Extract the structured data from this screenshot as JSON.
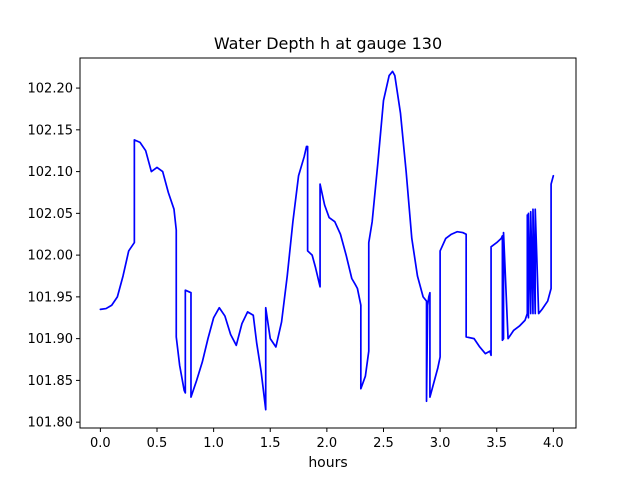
{
  "chart_data": {
    "type": "line",
    "title": "Water Depth h at gauge 130",
    "xlabel": "hours",
    "ylabel": "",
    "xlim": [
      -0.18,
      4.2
    ],
    "ylim": [
      101.793,
      102.236
    ],
    "xticks": [
      0.0,
      0.5,
      1.0,
      1.5,
      2.0,
      2.5,
      3.0,
      3.5,
      4.0
    ],
    "xtick_labels": [
      "0.0",
      "0.5",
      "1.0",
      "1.5",
      "2.0",
      "2.5",
      "3.0",
      "3.5",
      "4.0"
    ],
    "yticks": [
      101.8,
      101.85,
      101.9,
      101.95,
      102.0,
      102.05,
      102.1,
      102.15,
      102.2
    ],
    "ytick_labels": [
      "101.80",
      "101.85",
      "101.90",
      "101.95",
      "102.00",
      "102.05",
      "102.10",
      "102.15",
      "102.20"
    ],
    "grid": false,
    "series": [
      {
        "color": "#0000ff",
        "x": [
          0.0,
          0.05,
          0.1,
          0.15,
          0.2,
          0.25,
          0.3,
          0.3,
          0.35,
          0.4,
          0.45,
          0.5,
          0.55,
          0.6,
          0.65,
          0.67,
          0.67,
          0.7,
          0.74,
          0.75,
          0.75,
          0.8,
          0.8,
          0.85,
          0.9,
          0.95,
          1.0,
          1.05,
          1.1,
          1.15,
          1.2,
          1.25,
          1.3,
          1.35,
          1.38,
          1.42,
          1.46,
          1.46,
          1.5,
          1.55,
          1.6,
          1.65,
          1.7,
          1.75,
          1.8,
          1.82,
          1.83,
          1.83,
          1.87,
          1.9,
          1.94,
          1.94,
          1.98,
          2.02,
          2.07,
          2.12,
          2.17,
          2.22,
          2.25,
          2.27,
          2.3,
          2.3,
          2.34,
          2.37,
          2.37,
          2.4,
          2.45,
          2.5,
          2.55,
          2.58,
          2.6,
          2.65,
          2.7,
          2.75,
          2.8,
          2.85,
          2.88,
          2.88,
          2.89,
          2.9,
          2.91,
          2.91,
          2.95,
          2.98,
          3.0,
          3.0,
          3.05,
          3.1,
          3.15,
          3.2,
          3.23,
          3.23,
          3.3,
          3.35,
          3.4,
          3.44,
          3.45,
          3.45,
          3.5,
          3.54,
          3.55,
          3.55,
          3.56,
          3.56,
          3.6,
          3.65,
          3.7,
          3.75,
          3.77,
          3.77,
          3.78,
          3.78,
          3.8,
          3.8,
          3.82,
          3.82,
          3.84,
          3.84,
          3.87,
          3.9,
          3.95,
          3.98,
          3.98,
          4.0
        ],
        "y": [
          101.935,
          101.936,
          101.94,
          101.95,
          101.975,
          102.005,
          102.015,
          102.138,
          102.135,
          102.125,
          102.1,
          102.105,
          102.1,
          102.075,
          102.055,
          102.03,
          101.902,
          101.868,
          101.838,
          101.835,
          101.958,
          101.955,
          101.83,
          101.85,
          101.872,
          101.9,
          101.925,
          101.937,
          101.927,
          101.905,
          101.892,
          101.918,
          101.932,
          101.928,
          101.895,
          101.86,
          101.815,
          101.937,
          101.9,
          101.89,
          101.92,
          101.975,
          102.04,
          102.095,
          102.118,
          102.13,
          102.13,
          102.005,
          102.0,
          101.985,
          101.962,
          102.085,
          102.06,
          102.045,
          102.04,
          102.025,
          102.0,
          101.972,
          101.965,
          101.96,
          101.94,
          101.84,
          101.855,
          101.885,
          102.015,
          102.04,
          102.11,
          102.185,
          102.215,
          102.22,
          102.215,
          102.17,
          102.1,
          102.02,
          101.975,
          101.95,
          101.945,
          101.825,
          101.94,
          101.95,
          101.955,
          101.83,
          101.85,
          101.865,
          101.878,
          102.005,
          102.02,
          102.025,
          102.028,
          102.027,
          102.025,
          101.902,
          101.9,
          101.89,
          101.882,
          101.885,
          101.88,
          102.01,
          102.015,
          102.02,
          102.023,
          101.898,
          101.9,
          102.027,
          101.9,
          101.91,
          101.915,
          101.922,
          101.93,
          102.048,
          101.925,
          102.05,
          101.93,
          102.052,
          101.93,
          102.055,
          101.93,
          102.055,
          101.93,
          101.935,
          101.945,
          101.96,
          102.085,
          102.095
        ]
      }
    ]
  }
}
